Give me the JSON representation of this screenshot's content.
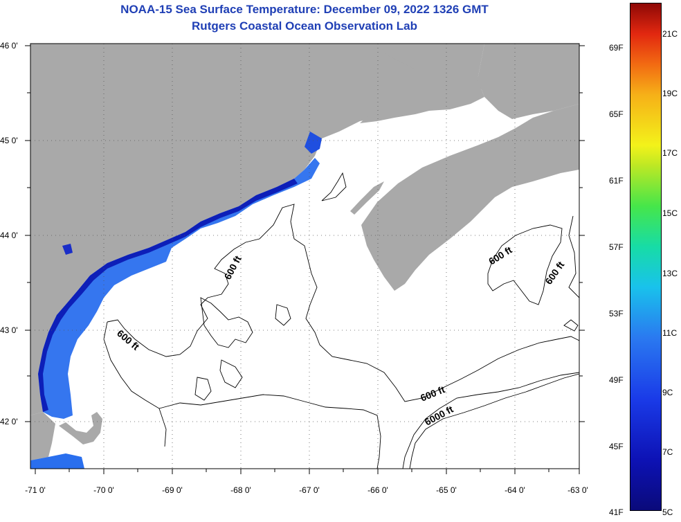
{
  "header": {
    "title_line1": "NOAA-15 Sea Surface Temperature:  December 09, 2022 1326 GMT",
    "title_line2": "Rutgers Coastal Ocean Observation Lab"
  },
  "axes": {
    "lat_labels": [
      "46 0'",
      "45 0'",
      "44 0'",
      "43 0'",
      "42 0'"
    ],
    "lon_labels": [
      "-71 0'",
      "-70 0'",
      "-69 0'",
      "-68 0'",
      "-67 0'",
      "-66 0'",
      "-65 0'",
      "-64 0'",
      "-63 0'"
    ]
  },
  "contours": {
    "label_600": "600 ft",
    "label_6000": "6000 ft"
  },
  "colorbar": {
    "fahrenheit_labels": [
      "69F",
      "65F",
      "61F",
      "57F",
      "53F",
      "49F",
      "45F",
      "41F"
    ],
    "celsius_labels": [
      "21C",
      "19C",
      "17C",
      "15C",
      "13C",
      "11C",
      "9C",
      "7C",
      "5C"
    ]
  },
  "colors": {
    "land": "#a9a9a9",
    "water_nodata": "#ffffff",
    "title": "#1f3fb5",
    "sst_cold": "#1a3be8",
    "sst_mid": "#2a79f0"
  }
}
